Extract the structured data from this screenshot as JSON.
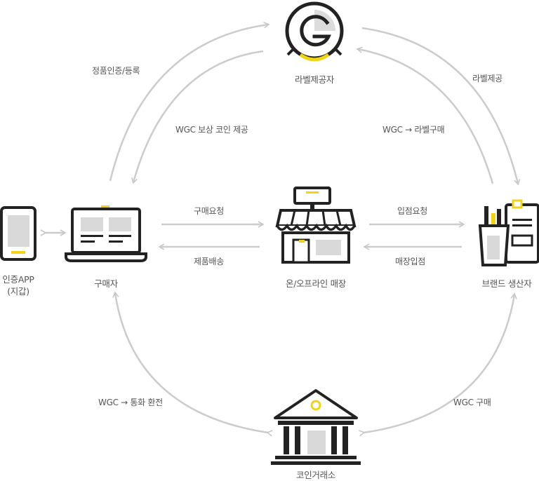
{
  "nodes": {
    "label_provider": "라벨제공자",
    "buyer": "구매자",
    "auth_app_line1": "인증APP",
    "auth_app_line2": "(지갑)",
    "store": "온/오프라인 매장",
    "brand": "브랜드 생산자",
    "exchange": "코인거래소"
  },
  "edges": {
    "buyer_to_label": "정품인증/등록",
    "label_to_buyer": "WGC 보상 코인 제공",
    "label_to_brand": "라벨제공",
    "brand_to_label": "WGC → 라벨구매",
    "buyer_to_store": "구매요청",
    "store_to_buyer": "제품배송",
    "store_to_brand": "입점요청",
    "brand_to_store": "매장입점",
    "exchange_buyer": "WGC → 통화 환전",
    "exchange_brand": "WGC 구매"
  },
  "colors": {
    "accent": "#f2d31b",
    "line": "#cccccc",
    "icon": "#222222",
    "fill": "#d9d9d9"
  }
}
